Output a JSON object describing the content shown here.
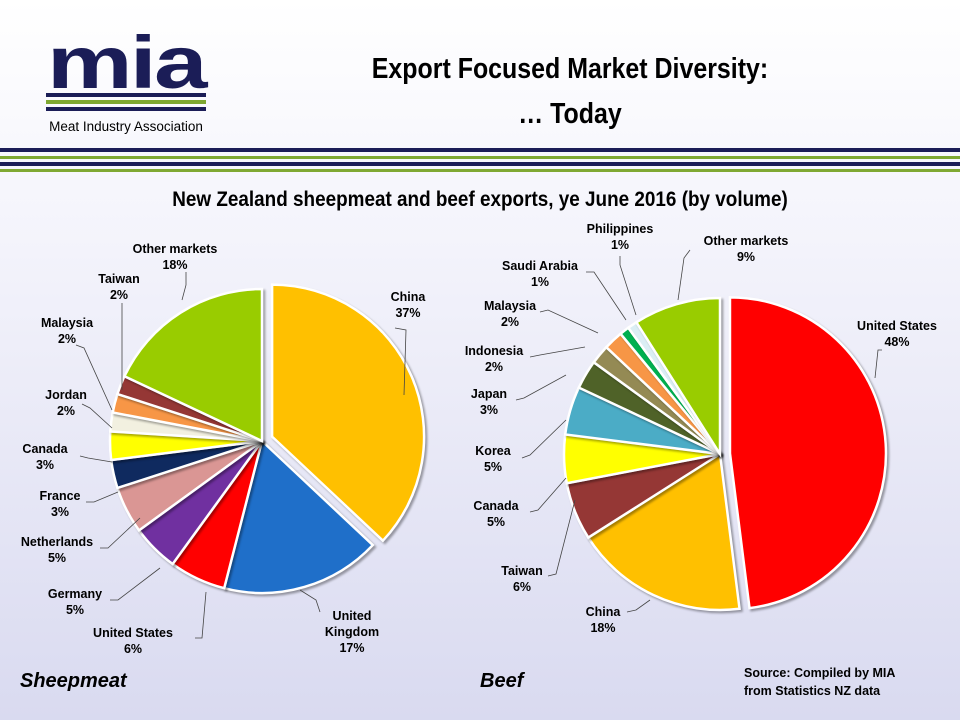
{
  "logo": {
    "mark": "mia",
    "name": "Meat Industry Association"
  },
  "header": {
    "title_line1": "Export Focused Market Diversity:",
    "title_line2": "… Today"
  },
  "subtitle": "New Zealand sheepmeat and beef exports, ye June 2016 (by volume)",
  "colors": {
    "accent_navy": "#1b1d57",
    "accent_green": "#7fa832"
  },
  "chart_data": [
    {
      "type": "pie",
      "title": "Sheepmeat",
      "unit": "%",
      "slices": [
        {
          "label": "China",
          "value": 37,
          "color": "#ffc000"
        },
        {
          "label": "United Kingdom",
          "value": 17,
          "color": "#1f6fc9"
        },
        {
          "label": "United States",
          "value": 6,
          "color": "#ff0000"
        },
        {
          "label": "Germany",
          "value": 5,
          "color": "#7030a0"
        },
        {
          "label": "Netherlands",
          "value": 5,
          "color": "#da9694"
        },
        {
          "label": "France",
          "value": 3,
          "color": "#0f2a5f"
        },
        {
          "label": "Canada",
          "value": 3,
          "color": "#ffff00"
        },
        {
          "label": "Jordan",
          "value": 2,
          "color": "#f2f0e0"
        },
        {
          "label": "Malaysia",
          "value": 2,
          "color": "#f79646"
        },
        {
          "label": "Taiwan",
          "value": 2,
          "color": "#953735"
        },
        {
          "label": "Other markets",
          "value": 18,
          "color": "#99cc00"
        }
      ]
    },
    {
      "type": "pie",
      "title": "Beef",
      "unit": "%",
      "slices": [
        {
          "label": "United States",
          "value": 48,
          "color": "#ff0000"
        },
        {
          "label": "China",
          "value": 18,
          "color": "#ffc000"
        },
        {
          "label": "Taiwan",
          "value": 6,
          "color": "#953735"
        },
        {
          "label": "Canada",
          "value": 5,
          "color": "#ffff00"
        },
        {
          "label": "Korea",
          "value": 5,
          "color": "#4bacc6"
        },
        {
          "label": "Japan",
          "value": 3,
          "color": "#4f6228"
        },
        {
          "label": "Indonesia",
          "value": 2,
          "color": "#948a54"
        },
        {
          "label": "Malaysia",
          "value": 2,
          "color": "#f79646"
        },
        {
          "label": "Saudi Arabia",
          "value": 1,
          "color": "#00b050"
        },
        {
          "label": "Philippines",
          "value": 1,
          "color": "#dbeef4"
        },
        {
          "label": "Other markets",
          "value": 9,
          "color": "#99cc00"
        }
      ]
    }
  ],
  "source": {
    "line1": "Source: Compiled by MIA",
    "line2": "from Statistics NZ data"
  }
}
